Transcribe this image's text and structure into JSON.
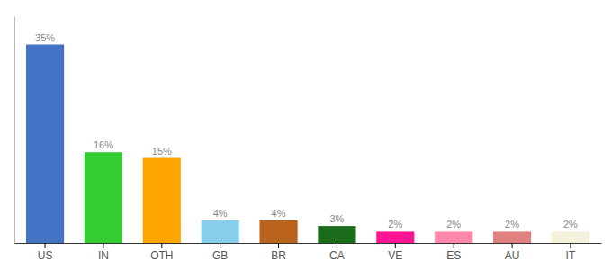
{
  "chart_data": {
    "type": "bar",
    "categories": [
      "US",
      "IN",
      "OTH",
      "GB",
      "BR",
      "CA",
      "VE",
      "ES",
      "AU",
      "IT"
    ],
    "values": [
      35,
      16,
      15,
      4,
      4,
      3,
      2,
      2,
      2,
      2
    ],
    "value_labels": [
      "35%",
      "16%",
      "15%",
      "4%",
      "4%",
      "3%",
      "2%",
      "2%",
      "2%",
      "2%"
    ],
    "colors": [
      "#4472C4",
      "#33CC33",
      "#FFA500",
      "#87CEEB",
      "#B8621B",
      "#1A6B1A",
      "#FF1493",
      "#FF88AA",
      "#E08080",
      "#F5F0DC"
    ],
    "ylim": [
      0,
      40
    ],
    "grid": false,
    "data_labels": true,
    "tick_labels": "x"
  }
}
